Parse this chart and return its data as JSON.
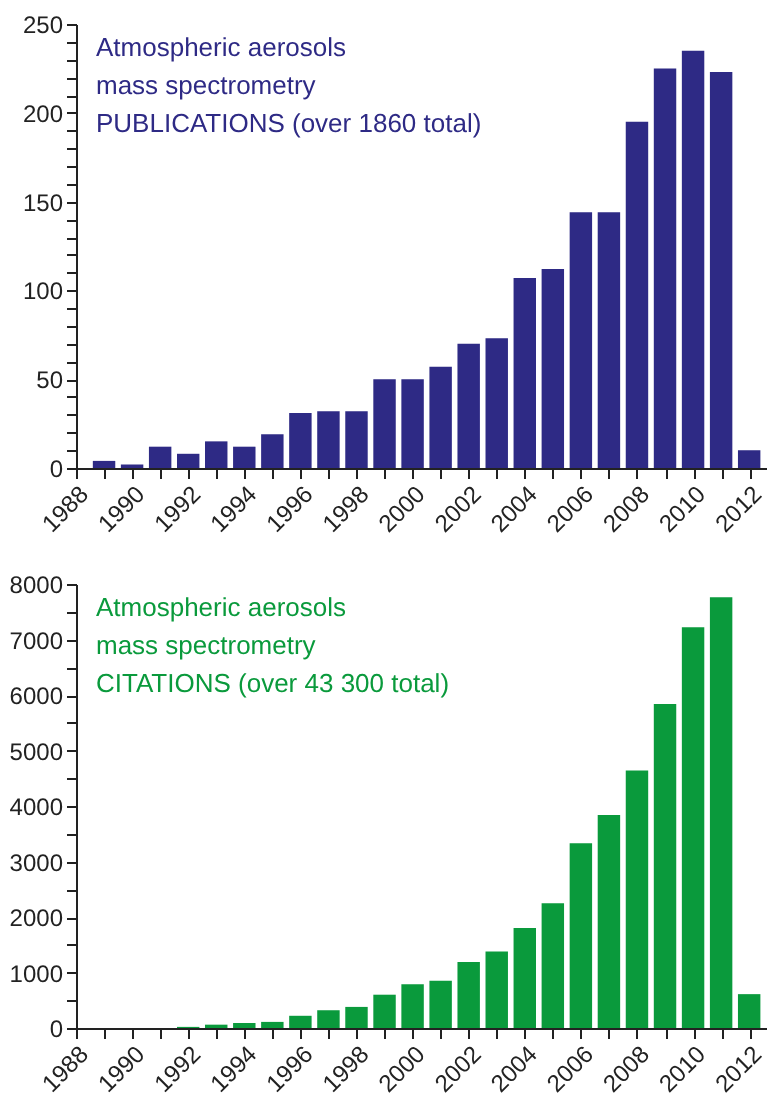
{
  "chart_data": [
    {
      "type": "bar",
      "x": [
        1989,
        1990,
        1991,
        1992,
        1993,
        1994,
        1995,
        1996,
        1997,
        1998,
        1999,
        2000,
        2001,
        2002,
        2003,
        2004,
        2005,
        2006,
        2007,
        2008,
        2009,
        2010,
        2011,
        2012
      ],
      "series": [
        {
          "color": "#2e2a85",
          "values": [
            4,
            2,
            12,
            8,
            15,
            12,
            19,
            31,
            32,
            32,
            50,
            50,
            57,
            70,
            73,
            107,
            112,
            144,
            144,
            195,
            225,
            235,
            223,
            10
          ]
        }
      ],
      "annotations": [
        "Atmospheric aerosols",
        "mass spectrometry",
        "PUBLICATIONS (over 1860 total)"
      ],
      "xlim": [
        1988,
        2012.6
      ],
      "xticks": [
        1988,
        {
          "value": 1989,
          "label": null
        },
        1990,
        {
          "value": 1991,
          "label": null
        },
        1992,
        {
          "value": 1993,
          "label": null
        },
        1994,
        {
          "value": 1995,
          "label": null
        },
        1996,
        {
          "value": 1997,
          "label": null
        },
        1998,
        {
          "value": 1999,
          "label": null
        },
        2000,
        {
          "value": 2001,
          "label": null
        },
        2002,
        {
          "value": 2003,
          "label": null
        },
        2004,
        {
          "value": 2005,
          "label": null
        },
        2006,
        {
          "value": 2007,
          "label": null
        },
        2008,
        {
          "value": 2009,
          "label": null
        },
        2010,
        {
          "value": 2011,
          "label": null
        },
        2012
      ],
      "ylim": [
        0,
        250
      ],
      "yticks": [
        0,
        {
          "value": 10,
          "label": null
        },
        {
          "value": 20,
          "label": null
        },
        {
          "value": 30,
          "label": null
        },
        {
          "value": 40,
          "label": null
        },
        50,
        {
          "value": 60,
          "label": null
        },
        {
          "value": 70,
          "label": null
        },
        {
          "value": 80,
          "label": null
        },
        {
          "value": 90,
          "label": null
        },
        100,
        {
          "value": 110,
          "label": null
        },
        {
          "value": 120,
          "label": null
        },
        {
          "value": 130,
          "label": null
        },
        {
          "value": 140,
          "label": null
        },
        150,
        {
          "value": 160,
          "label": null
        },
        {
          "value": 170,
          "label": null
        },
        {
          "value": 180,
          "label": null
        },
        {
          "value": 190,
          "label": null
        },
        200,
        {
          "value": 210,
          "label": null
        },
        {
          "value": 220,
          "label": null
        },
        {
          "value": 230,
          "label": null
        },
        {
          "value": 240,
          "label": null
        },
        250
      ],
      "grid": false,
      "legend": false
    },
    {
      "type": "bar",
      "x": [
        1989,
        1990,
        1991,
        1992,
        1993,
        1994,
        1995,
        1996,
        1997,
        1998,
        1999,
        2000,
        2001,
        2002,
        2003,
        2004,
        2005,
        2006,
        2007,
        2008,
        2009,
        2010,
        2011,
        2012
      ],
      "series": [
        {
          "color": "#0a9a3c",
          "values": [
            0,
            0,
            0,
            20,
            60,
            90,
            110,
            220,
            320,
            380,
            600,
            790,
            850,
            1190,
            1380,
            1800,
            2250,
            3330,
            3840,
            4640,
            5840,
            7220,
            7760,
            610
          ]
        }
      ],
      "annotations": [
        "Atmospheric aerosols",
        "mass spectrometry",
        "CITATIONS (over 43 300 total)"
      ],
      "xlim": [
        1988,
        2012.6
      ],
      "xticks": [
        1988,
        {
          "value": 1989,
          "label": null
        },
        1990,
        {
          "value": 1991,
          "label": null
        },
        1992,
        {
          "value": 1993,
          "label": null
        },
        1994,
        {
          "value": 1995,
          "label": null
        },
        1996,
        {
          "value": 1997,
          "label": null
        },
        1998,
        {
          "value": 1999,
          "label": null
        },
        2000,
        {
          "value": 2001,
          "label": null
        },
        2002,
        {
          "value": 2003,
          "label": null
        },
        2004,
        {
          "value": 2005,
          "label": null
        },
        2006,
        {
          "value": 2007,
          "label": null
        },
        2008,
        {
          "value": 2009,
          "label": null
        },
        2010,
        {
          "value": 2011,
          "label": null
        },
        2012
      ],
      "ylim": [
        0,
        8000
      ],
      "yticks": [
        0,
        {
          "value": 500,
          "label": null
        },
        1000,
        {
          "value": 1500,
          "label": null
        },
        2000,
        {
          "value": 2500,
          "label": null
        },
        3000,
        {
          "value": 3500,
          "label": null
        },
        4000,
        {
          "value": 4500,
          "label": null
        },
        5000,
        {
          "value": 5500,
          "label": null
        },
        6000,
        {
          "value": 6500,
          "label": null
        },
        7000,
        {
          "value": 7500,
          "label": null
        },
        8000
      ],
      "grid": false,
      "legend": false
    }
  ]
}
